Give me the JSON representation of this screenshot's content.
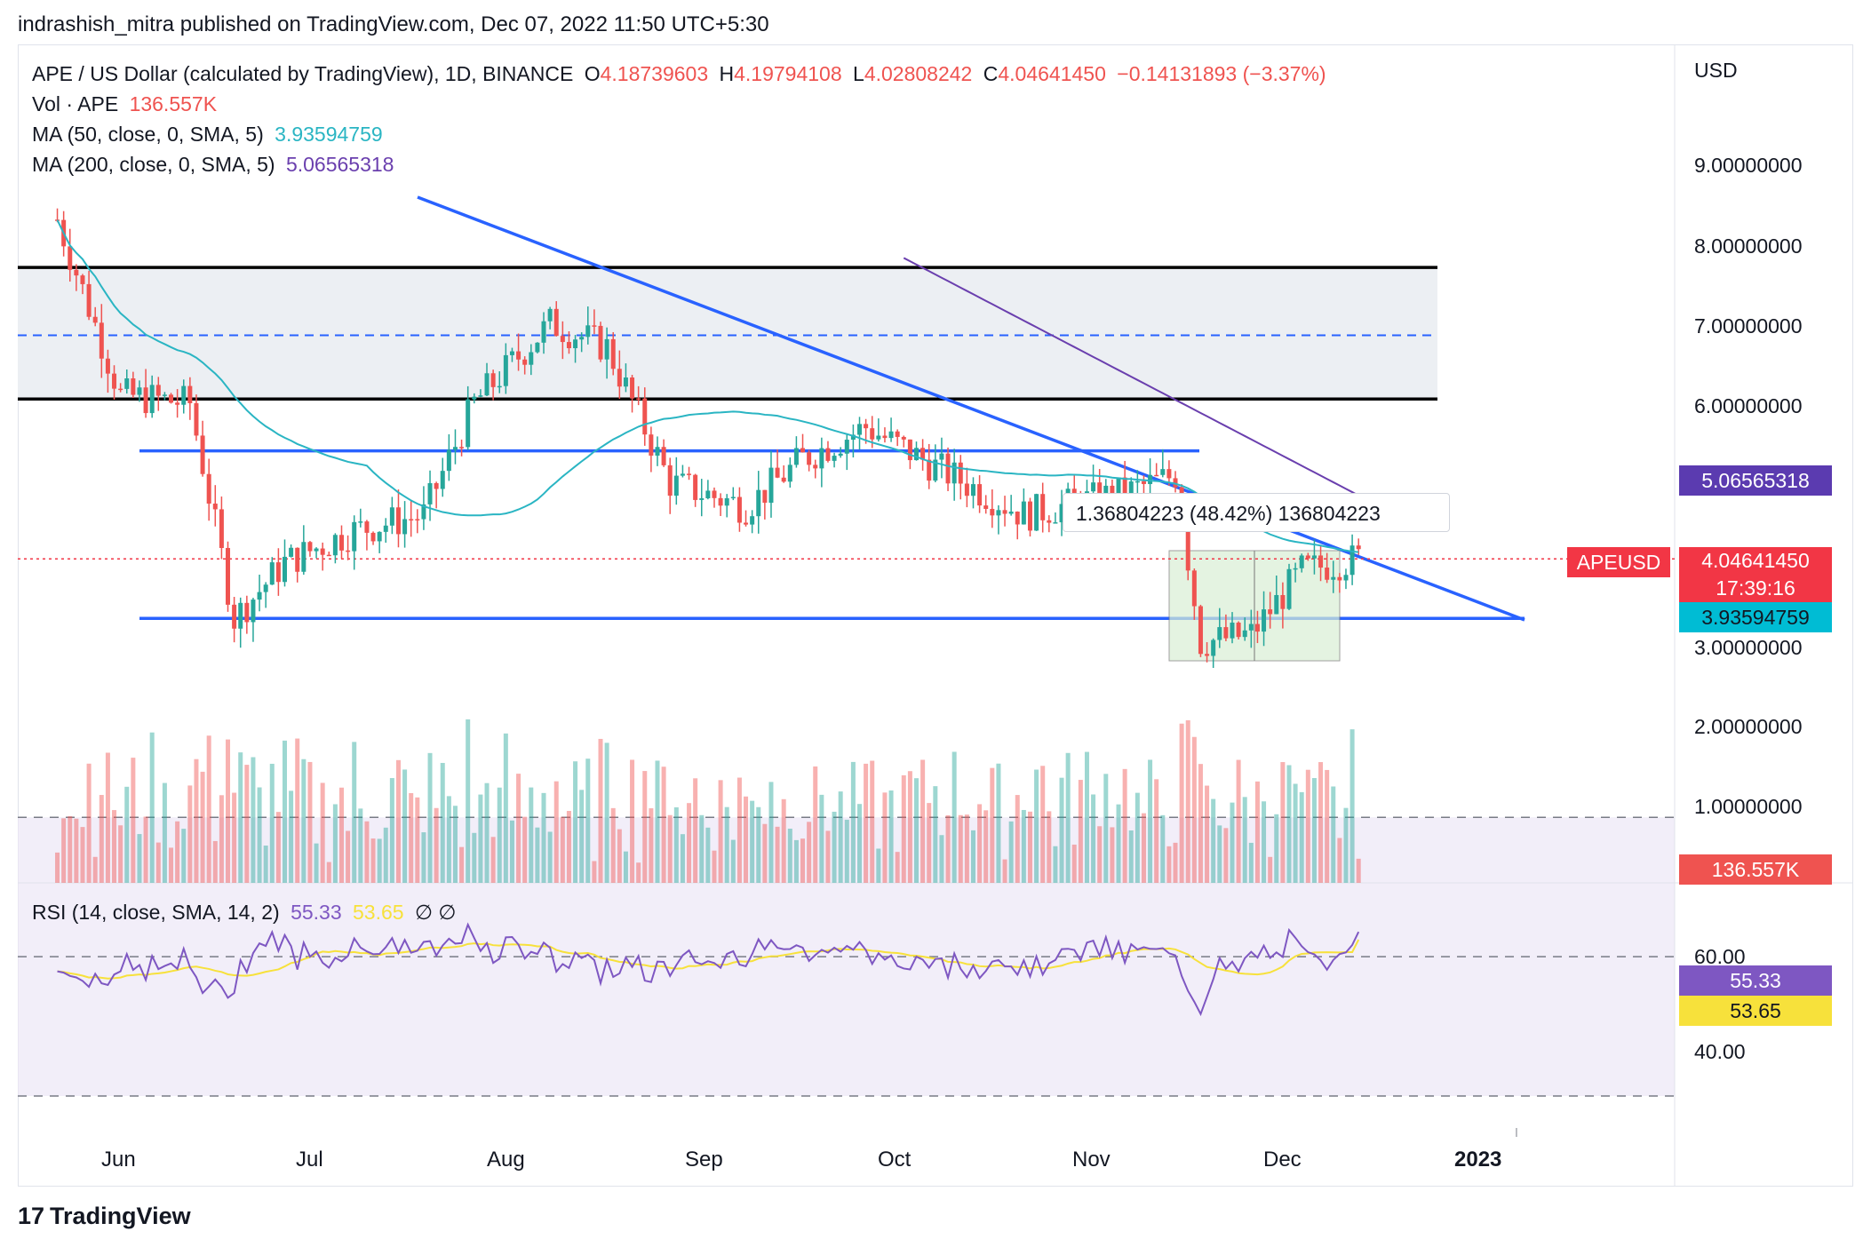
{
  "header": {
    "published_by": "indrashish_mitra published on TradingView.com, Dec 07, 2022 11:50 UTC+5:30"
  },
  "legend": {
    "symbol": "APE / US Dollar (calculated by TradingView), 1D, BINANCE",
    "open_label": "O",
    "open": "4.18739603",
    "high_label": "H",
    "high": "4.19794108",
    "low_label": "L",
    "low": "4.02808242",
    "close_label": "C",
    "close": "4.04641450",
    "change": "−0.14131893 (−3.37%)",
    "vol_label": "Vol · APE",
    "vol_value": "136.557K",
    "ma50_label": "MA (50, close, 0, SMA, 5)",
    "ma50_value": "3.93594759",
    "ma200_label": "MA (200, close, 0, SMA, 5)",
    "ma200_value": "5.06565318",
    "rsi_label": "RSI (14, close, SMA, 14, 2)",
    "rsi_value": "55.33",
    "rsi_sma_value": "53.65",
    "rsi_extra": "∅ ∅"
  },
  "axis": {
    "currency": "USD",
    "price_ticks": [
      "9.00000000",
      "8.00000000",
      "7.00000000",
      "6.00000000",
      "3.00000000",
      "2.00000000",
      "1.00000000"
    ],
    "rsi_ticks": [
      "60.00",
      "40.00"
    ],
    "tags": {
      "ma200": "5.06565318",
      "close": "4.04641450",
      "countdown": "17:39:16",
      "ma50": "3.93594759",
      "volume": "136.557K",
      "rsi": "55.33",
      "rsi_sma": "53.65",
      "symbol": "APEUSD"
    },
    "x_labels": [
      "Jun",
      "Jul",
      "Aug",
      "Sep",
      "Oct",
      "Nov",
      "Dec",
      "2023"
    ]
  },
  "measure": {
    "text": "1.36804223 (48.42%) 136804223"
  },
  "footer": {
    "brand": "TradingView",
    "logo": "17"
  },
  "colors": {
    "up": "#26a69a",
    "down": "#ef5350",
    "ma50": "#2ab5c3",
    "ma200": "#6a3fae",
    "trend": "#2962ff",
    "rsi": "#7e57c2",
    "rsi_sma": "#f7e13b",
    "zone": "#eceff3",
    "box": "#d9efd5",
    "price_line": "#f23645"
  },
  "chart_data": {
    "type": "candlestick",
    "price_range": [
      2.0,
      10.0
    ],
    "rsi_range": [
      20,
      80
    ],
    "x": [
      "May 15",
      "Jun 1",
      "Jul 1",
      "Aug 1",
      "Sep 1",
      "Oct 1",
      "Nov 1",
      "Dec 1",
      "Jan 1"
    ],
    "close_series_approx": [
      {
        "date": "May 15",
        "close": 8.3
      },
      {
        "date": "May 25",
        "close": 6.1
      },
      {
        "date": "Jun 5",
        "close": 6.0
      },
      {
        "date": "Jun 12",
        "close": 3.3
      },
      {
        "date": "Jun 20",
        "close": 4.0
      },
      {
        "date": "Jul 1",
        "close": 4.4
      },
      {
        "date": "Jul 12",
        "close": 4.6
      },
      {
        "date": "Jul 20",
        "close": 6.0
      },
      {
        "date": "Aug 1",
        "close": 7.0
      },
      {
        "date": "Aug 10",
        "close": 6.7
      },
      {
        "date": "Aug 20",
        "close": 5.0
      },
      {
        "date": "Sep 1",
        "close": 4.7
      },
      {
        "date": "Sep 10",
        "close": 5.3
      },
      {
        "date": "Sep 20",
        "close": 5.7
      },
      {
        "date": "Oct 1",
        "close": 5.2
      },
      {
        "date": "Oct 15",
        "close": 4.6
      },
      {
        "date": "Nov 1",
        "close": 4.9
      },
      {
        "date": "Nov 8",
        "close": 5.1
      },
      {
        "date": "Nov 12",
        "close": 3.0
      },
      {
        "date": "Nov 20",
        "close": 3.1
      },
      {
        "date": "Nov 28",
        "close": 3.9
      },
      {
        "date": "Dec 7",
        "close": 4.05
      }
    ],
    "horizontal_levels": [
      7.7,
      6.85,
      6.05,
      5.4,
      3.3
    ],
    "ma50_last": 3.93594759,
    "ma200_last": 5.06565318
  }
}
